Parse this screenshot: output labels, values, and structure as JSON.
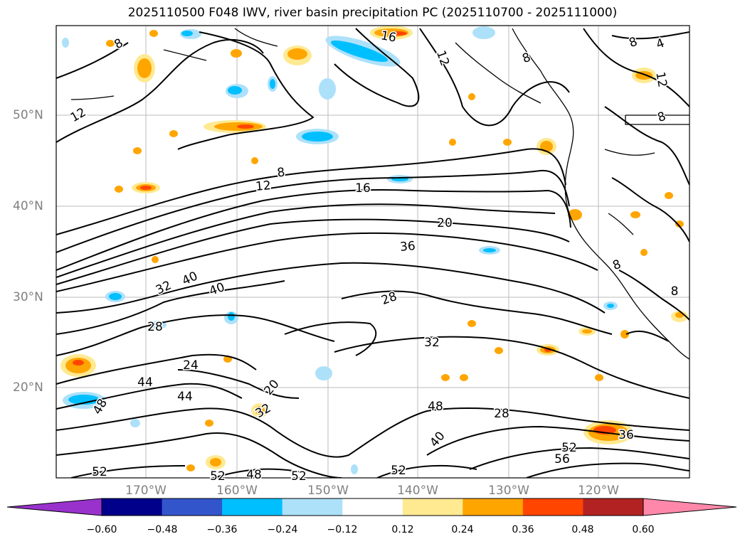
{
  "title": "2025110500 F048 IWV, river basin precipitation PC (2025110700 - 2025111000)",
  "lat_labels": [
    "50°N",
    "40°N",
    "30°N",
    "20°N"
  ],
  "lon_labels": [
    "170°W",
    "160°W",
    "150°W",
    "140°W",
    "130°W",
    "120°W"
  ],
  "colorbar": {
    "tick_labels": [
      "−0.60",
      "−0.48",
      "−0.36",
      "−0.24",
      "−0.12",
      "0.12",
      "0.24",
      "0.36",
      "0.48",
      "0.60"
    ],
    "colors": [
      "#9932CC",
      "#00008B",
      "#3355CC",
      "#00BFFF",
      "#ADE1FA",
      "#FFFFFF",
      "#FFE991",
      "#FFA500",
      "#FF4500",
      "#B22222",
      "#FF88AA"
    ]
  },
  "contour_labels": [
    "8",
    "8",
    "4",
    "8",
    "12",
    "16",
    "12",
    "8",
    "12",
    "8",
    "12",
    "16",
    "20",
    "36",
    "32",
    "40",
    "40",
    "28",
    "28",
    "32",
    "24",
    "44",
    "44",
    "48",
    "28",
    "40",
    "52",
    "32",
    "52",
    "56",
    "36",
    "52",
    "52",
    "48",
    "52",
    "48",
    "20",
    "8",
    "8"
  ],
  "colors": {
    "contour": "#000000",
    "grid": "#bbbbbb",
    "land_pos1": "#FFE991",
    "land_pos2": "#FFA500",
    "land_pos3": "#FF4500",
    "neg1": "#ADE1FA",
    "neg2": "#00BFFF"
  }
}
